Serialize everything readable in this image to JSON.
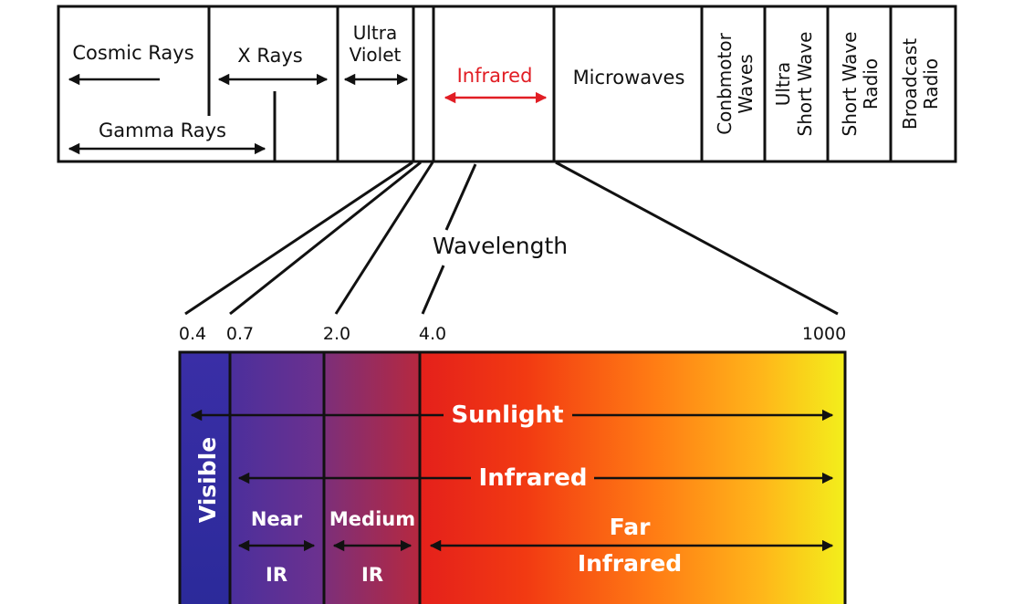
{
  "spectrum": {
    "cosmic_rays": "Cosmic Rays",
    "x_rays": "X Rays",
    "gamma_rays": "Gamma Rays",
    "ultra_violet_line1": "Ultra",
    "ultra_violet_line2": "Violet",
    "infrared": "Infrared",
    "microwaves": "Microwaves",
    "conbmotor_line1": "Conbmotor",
    "conbmotor_line2": "Waves",
    "ultra_short_line1": "Ultra",
    "ultra_short_line2": "Short Wave",
    "short_wave_line1": "Short Wave",
    "short_wave_line2": "Radio",
    "broadcast_line1": "Broadcast",
    "broadcast_line2": "Radio"
  },
  "wavelength": {
    "label": "Wavelength",
    "ticks": [
      "0.4",
      "0.7",
      "2.0",
      "4.0",
      "1000"
    ]
  },
  "detail": {
    "visible": "Visible",
    "sunlight": "Sunlight",
    "infrared": "Infrared",
    "near_line1": "Near",
    "near_line2": "IR",
    "medium_line1": "Medium",
    "medium_line2": "IR",
    "far_line1": "Far",
    "far_line2": "Infrared"
  },
  "colors": {
    "stroke": "#111111",
    "highlight": "#e11d24",
    "visible_top": "#3a2ea6",
    "visible_bottom": "#2b2a9a",
    "near_ir": "#56329a",
    "medium_ir": "#a02a5c",
    "far_start": "#e5221a",
    "far_mid": "#ff7a12",
    "far_end": "#f3f01a",
    "label_white": "#ffffff"
  }
}
